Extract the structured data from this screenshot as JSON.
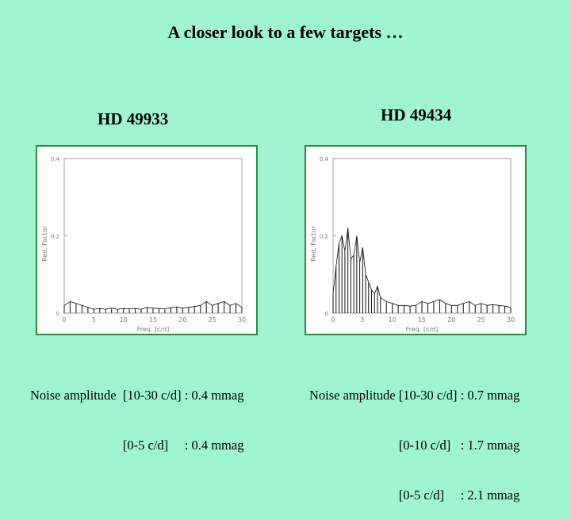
{
  "slide": {
    "title": "A  closer  look  to   a   few   targets …"
  },
  "targets": [
    {
      "name": "HD 49933",
      "noise_lines": [
        "Noise amplitude  [10-30 c/d] : 0.4 mmag",
        "[0-5 c/d]     : 0.4 mmag"
      ]
    },
    {
      "name": "HD 49434",
      "noise_lines": [
        "Noise amplitude [10-30 c/d] : 0.7 mmag",
        "[0-10 c/d]   : 1.7 mmag",
        "[0-5 c/d]     : 2.1 mmag"
      ]
    }
  ],
  "chart_data": [
    {
      "type": "line",
      "xlabel": "Freq. [c/d]",
      "ylabel": "Red. Factor",
      "xlim": [
        0,
        30
      ],
      "ylim": [
        0,
        0.4
      ],
      "xticks": [
        "0",
        "5",
        "10",
        "15",
        "20",
        "25",
        "30"
      ],
      "yticks": [
        "0",
        "0.2",
        "0.4"
      ],
      "grid": false,
      "line_color": "#111111",
      "series": [
        {
          "x": [
            0,
            1,
            2,
            3,
            4,
            5,
            6,
            7,
            8,
            9,
            10,
            11,
            12,
            13,
            14,
            15,
            16,
            17,
            18,
            19,
            20,
            21,
            22,
            23,
            24,
            25,
            26,
            27,
            28,
            29,
            30
          ],
          "y": [
            0.02,
            0.03,
            0.025,
            0.02,
            0.015,
            0.01,
            0.012,
            0.01,
            0.013,
            0.01,
            0.012,
            0.011,
            0.012,
            0.01,
            0.015,
            0.013,
            0.012,
            0.011,
            0.014,
            0.016,
            0.013,
            0.015,
            0.017,
            0.02,
            0.03,
            0.02,
            0.025,
            0.03,
            0.02,
            0.025,
            0.015
          ]
        }
      ]
    },
    {
      "type": "line",
      "xlabel": "Freq. [c/d]",
      "ylabel": "Red. Factor",
      "xlim": [
        0,
        30
      ],
      "ylim": [
        0,
        0.4
      ],
      "xticks": [
        "0",
        "5",
        "10",
        "15",
        "20",
        "25",
        "30"
      ],
      "yticks": [
        "0",
        "0.2",
        "0.4"
      ],
      "grid": false,
      "line_color": "#111111",
      "series": [
        {
          "x": [
            0,
            0.5,
            1,
            1.5,
            2,
            2.5,
            3,
            3.5,
            4,
            4.5,
            5,
            5.5,
            6,
            6.5,
            7,
            7.5,
            8,
            9,
            10,
            11,
            12,
            13,
            14,
            15,
            16,
            17,
            18,
            19,
            20,
            21,
            22,
            23,
            24,
            25,
            26,
            27,
            28,
            29,
            30
          ],
          "y": [
            0.05,
            0.12,
            0.18,
            0.2,
            0.16,
            0.22,
            0.14,
            0.15,
            0.2,
            0.13,
            0.17,
            0.1,
            0.08,
            0.06,
            0.05,
            0.07,
            0.04,
            0.03,
            0.025,
            0.02,
            0.02,
            0.018,
            0.02,
            0.03,
            0.025,
            0.03,
            0.035,
            0.025,
            0.02,
            0.02,
            0.025,
            0.03,
            0.02,
            0.025,
            0.02,
            0.022,
            0.02,
            0.018,
            0.015
          ]
        }
      ]
    }
  ]
}
